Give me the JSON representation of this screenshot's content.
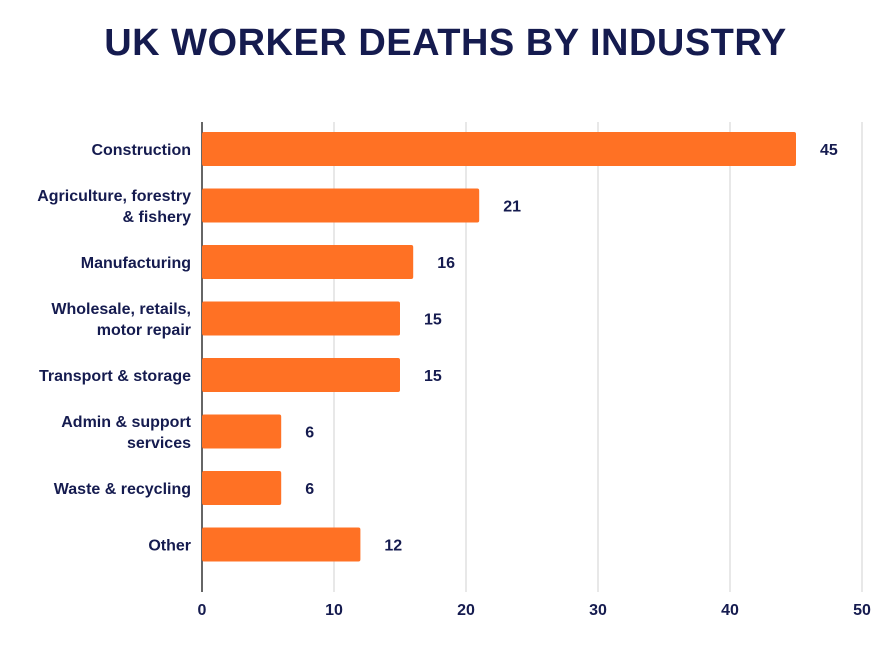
{
  "chart_data": {
    "type": "bar",
    "orientation": "horizontal",
    "title": "UK WORKER DEATHS BY INDUSTRY",
    "categories": [
      [
        "Construction"
      ],
      [
        "Agriculture, forestry",
        "& fishery"
      ],
      [
        "Manufacturing"
      ],
      [
        "Wholesale, retails,",
        "motor repair"
      ],
      [
        "Transport & storage"
      ],
      [
        "Admin & support",
        "services"
      ],
      [
        "Waste & recycling"
      ],
      [
        "Other"
      ]
    ],
    "values": [
      45,
      21,
      16,
      15,
      15,
      6,
      6,
      12
    ],
    "xlim": [
      0,
      50
    ],
    "xticks": [
      0,
      10,
      20,
      30,
      40,
      50
    ],
    "grid": true,
    "colors": {
      "bar": "#ff7124",
      "text": "#151b4f",
      "grid": "#d9d9d9",
      "axis": "#333333"
    }
  }
}
